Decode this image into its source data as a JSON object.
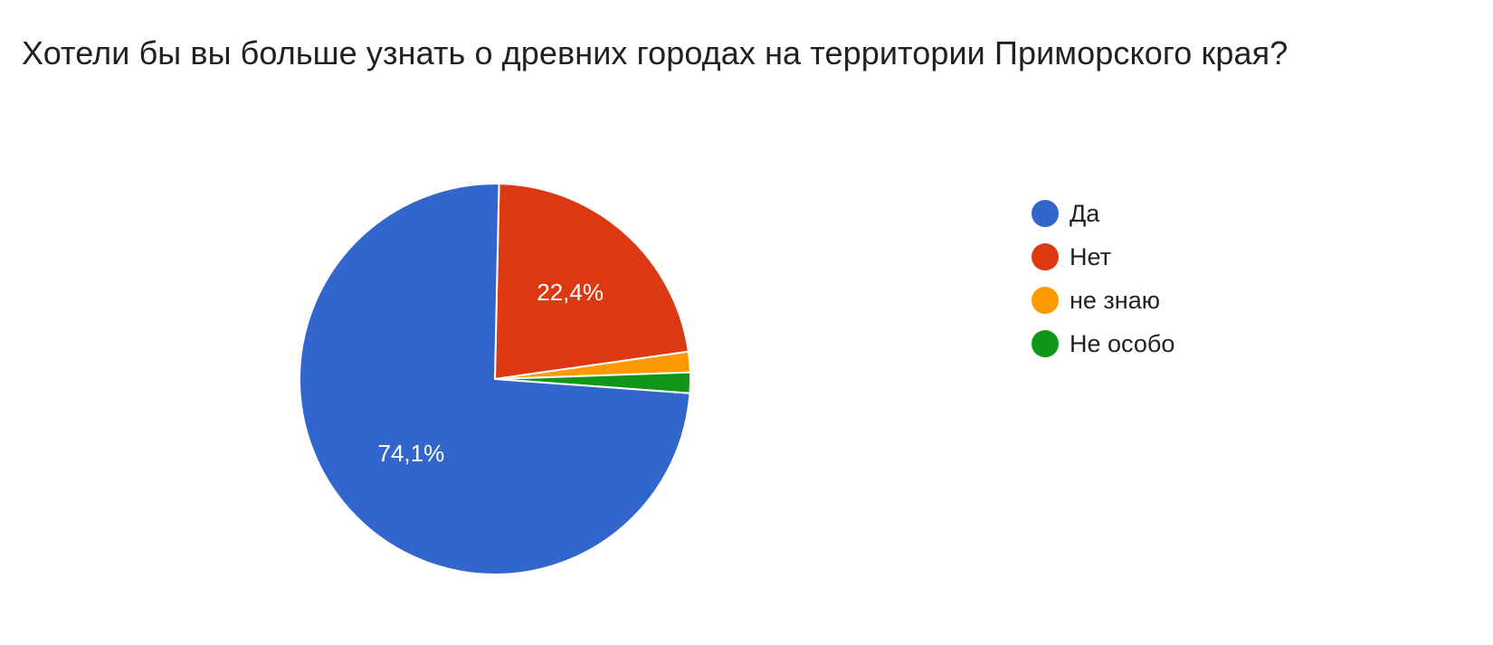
{
  "chart_data": {
    "type": "pie",
    "title": "Хотели бы вы больше узнать о древних городах на территории Приморского края?",
    "legend_position": "right",
    "slices": [
      {
        "label": "Да",
        "value": 74.1,
        "value_label": "74,1%",
        "color": "#3366cc"
      },
      {
        "label": "Нет",
        "value": 22.4,
        "value_label": "22,4%",
        "color": "#dc3912"
      },
      {
        "label": "не знаю",
        "value": 1.7,
        "value_label": "",
        "color": "#ff9900"
      },
      {
        "label": "Не особо",
        "value": 1.7,
        "value_label": "",
        "color": "#109618"
      }
    ]
  }
}
